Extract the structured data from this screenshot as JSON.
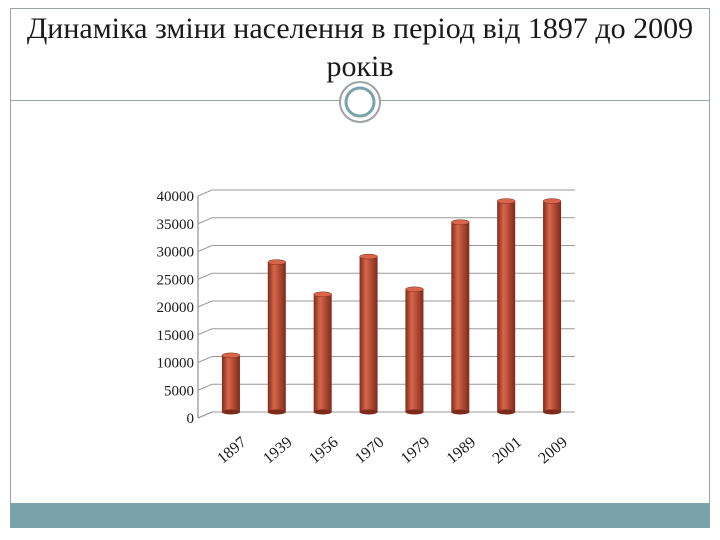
{
  "slide": {
    "title": "Динаміка зміни населення в період від 1897 до 2009 років"
  },
  "chart_data": {
    "type": "bar",
    "title": "",
    "xlabel": "",
    "ylabel": "",
    "categories": [
      "1897",
      "1939",
      "1956",
      "1970",
      "1979",
      "1989",
      "2001",
      "2009"
    ],
    "values": [
      10200,
      27000,
      21200,
      28000,
      22100,
      34200,
      38000,
      38000
    ],
    "ylim": [
      0,
      40000
    ],
    "yticks": [
      0,
      5000,
      10000,
      15000,
      20000,
      25000,
      30000,
      35000,
      40000
    ],
    "grid": true,
    "legend": "none",
    "colors": {
      "bar": "#b5452f",
      "bar_light": "#d9664b",
      "bar_dark": "#7e2a1a",
      "grid": "#9a9a9a",
      "frame": "#9aa3a6",
      "band": "#7aa2aa"
    }
  }
}
